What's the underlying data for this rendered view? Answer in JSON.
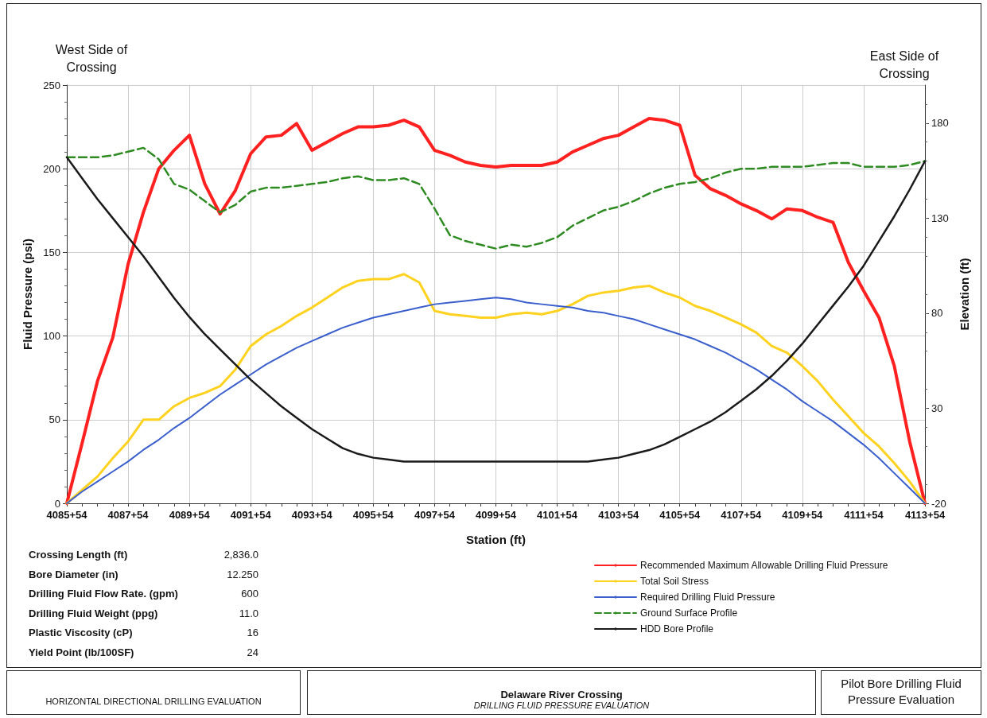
{
  "chart_data": {
    "type": "line",
    "xlabel": "Station (ft)",
    "ylabel": "Fluid Pressure (psi)",
    "y2label": "Elevation (ft)",
    "categories": [
      "4085+54",
      null,
      null,
      null,
      "4087+54",
      null,
      null,
      null,
      "4089+54",
      null,
      null,
      null,
      "4091+54",
      null,
      null,
      null,
      "4093+54",
      null,
      null,
      null,
      "4095+54",
      null,
      null,
      null,
      "4097+54",
      null,
      null,
      null,
      "4099+54",
      null,
      null,
      null,
      "4101+54",
      null,
      null,
      null,
      "4103+54",
      null,
      null,
      null,
      "4105+54",
      null,
      null,
      null,
      "4107+54",
      null,
      null,
      null,
      "4109+54",
      null,
      null,
      null,
      "4111+54",
      null,
      null,
      null,
      "4113+54"
    ],
    "ylim": [
      0,
      250
    ],
    "yticks": [
      0,
      50,
      100,
      150,
      200,
      250
    ],
    "y2lim": [
      -20,
      200
    ],
    "y2ticks": [
      -20,
      30,
      80,
      130,
      180
    ],
    "grid": true,
    "legend": "bottom",
    "marker": "none",
    "line_style": "solid",
    "series": [
      {
        "name": "Recommended Maximum Allowable Drilling Fluid Pressure",
        "color": "#ff2020",
        "values": [
          0,
          36,
          73,
          99,
          143,
          174,
          200,
          211,
          220,
          191,
          173,
          187,
          209,
          219,
          220,
          227,
          211,
          216,
          221,
          225,
          225,
          226,
          229,
          225,
          211,
          208,
          204,
          202,
          201,
          202,
          202,
          202,
          204,
          210,
          214,
          218,
          220,
          225,
          230,
          229,
          226,
          196,
          188,
          184,
          179,
          175,
          170,
          176,
          175,
          171,
          168,
          144,
          127,
          111,
          82,
          37,
          0
        ]
      },
      {
        "name": "Total Soil Stress",
        "color": "#ffd21f",
        "values": [
          0,
          8,
          16,
          27,
          37,
          50,
          50,
          58,
          63,
          66,
          70,
          80,
          94,
          101,
          106,
          112,
          117,
          123,
          129,
          133,
          134,
          134,
          137,
          132,
          115,
          113,
          112,
          111,
          111,
          113,
          114,
          113,
          115,
          119,
          124,
          126,
          127,
          129,
          130,
          126,
          123,
          118,
          115,
          111,
          107,
          102,
          94,
          90,
          82,
          73,
          62,
          52,
          42,
          34,
          24,
          13,
          0
        ]
      },
      {
        "name": "Required Drilling Fluid Pressure",
        "color": "#3a5fcd",
        "values": [
          0,
          7,
          13,
          19,
          25,
          32,
          38,
          45,
          51,
          58,
          65,
          71,
          77,
          83,
          88,
          93,
          97,
          101,
          105,
          108,
          111,
          113,
          115,
          117,
          119,
          120,
          121,
          122,
          123,
          122,
          120,
          119,
          118,
          117,
          115,
          114,
          112,
          110,
          107,
          104,
          101,
          98,
          94,
          90,
          85,
          80,
          74,
          68,
          61,
          55,
          49,
          42,
          35,
          27,
          18,
          9,
          0
        ]
      },
      {
        "name": "Ground Surface Profile",
        "color": "#2e8b22",
        "axis": "y2",
        "line_style": "dashed",
        "values": [
          162,
          162,
          162,
          163,
          165,
          167,
          161,
          148,
          145,
          139,
          133,
          137,
          144,
          146,
          146,
          147,
          148,
          149,
          151,
          152,
          150,
          150,
          151,
          148,
          135,
          121,
          118,
          116,
          114,
          116,
          115,
          117,
          120,
          126,
          130,
          134,
          136,
          139,
          143,
          146,
          148,
          149,
          151,
          154,
          156,
          156,
          157,
          157,
          157,
          158,
          159,
          159,
          157,
          157,
          157,
          158,
          160
        ]
      },
      {
        "name": "HDD Bore Profile",
        "color": "#1a1a1a",
        "axis": "y2",
        "values": [
          162,
          151,
          140,
          130,
          120,
          110,
          99,
          88,
          78,
          69,
          61,
          53,
          45,
          38,
          31,
          25,
          19,
          14,
          9,
          6,
          4,
          3,
          2,
          2,
          2,
          2,
          2,
          2,
          2,
          2,
          2,
          2,
          2,
          2,
          2,
          3,
          4,
          6,
          8,
          11,
          15,
          19,
          23,
          28,
          34,
          40,
          47,
          55,
          64,
          74,
          84,
          94,
          105,
          118,
          131,
          145,
          160
        ]
      }
    ],
    "annotations": [
      "West Side of Crossing",
      "East Side of Crossing",
      "Crossing Length (ft)",
      "2,836.0",
      "Bore Diameter (in)",
      "12.250",
      "Drilling Fluid Flow Rate. (gpm)",
      "600",
      "Drilling Fluid Weight (ppg)",
      "11.0",
      "Plastic Viscosity (cP)",
      "16",
      "Yield Point (lb/100SF)",
      "24",
      "HORIZONTAL DIRECTIONAL DRILLING EVALUATION",
      "Delaware River Crossing",
      "DRILLING FLUID PRESSURE EVALUATION",
      "Pilot Bore Drilling Fluid Pressure Evaluation"
    ]
  }
}
